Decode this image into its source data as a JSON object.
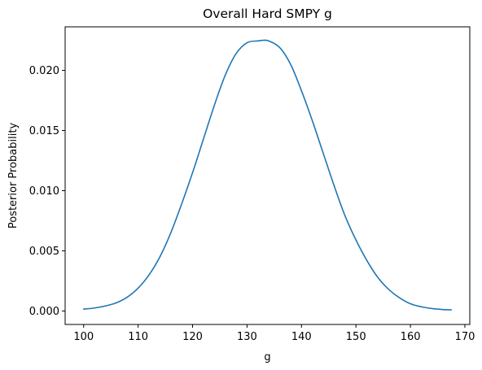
{
  "chart_data": {
    "type": "line",
    "title": "Overall Hard SMPY g",
    "xlabel": "g",
    "ylabel": "Posterior Probability",
    "xlim": [
      96.6,
      170.9
    ],
    "ylim": [
      -0.00112,
      0.02362
    ],
    "x_ticks": [
      100,
      110,
      120,
      130,
      140,
      150,
      160,
      170
    ],
    "y_ticks": [
      0.0,
      0.005,
      0.01,
      0.015,
      0.02
    ],
    "y_tick_labels": [
      "0.000",
      "0.005",
      "0.010",
      "0.015",
      "0.020"
    ],
    "grid": false,
    "series": [
      {
        "color": "#1f77b4",
        "x": [
          100,
          102,
          104,
          106,
          108,
          110,
          112,
          114,
          116,
          118,
          120,
          122,
          124,
          126,
          128,
          130,
          132,
          133,
          134,
          136,
          138,
          140,
          142,
          144,
          146,
          148,
          150,
          152,
          154,
          156,
          158,
          160,
          162,
          164,
          166,
          167.5
        ],
        "y": [
          0.00015,
          0.00025,
          0.00042,
          0.00068,
          0.00115,
          0.0019,
          0.003,
          0.0045,
          0.0065,
          0.0089,
          0.0115,
          0.0143,
          0.0171,
          0.0196,
          0.0214,
          0.0223,
          0.02245,
          0.0225,
          0.02245,
          0.0219,
          0.0205,
          0.0183,
          0.0158,
          0.0131,
          0.0104,
          0.0079,
          0.0059,
          0.0042,
          0.0028,
          0.0018,
          0.0011,
          0.0006,
          0.00035,
          0.0002,
          0.00012,
          0.0001
        ]
      }
    ]
  }
}
